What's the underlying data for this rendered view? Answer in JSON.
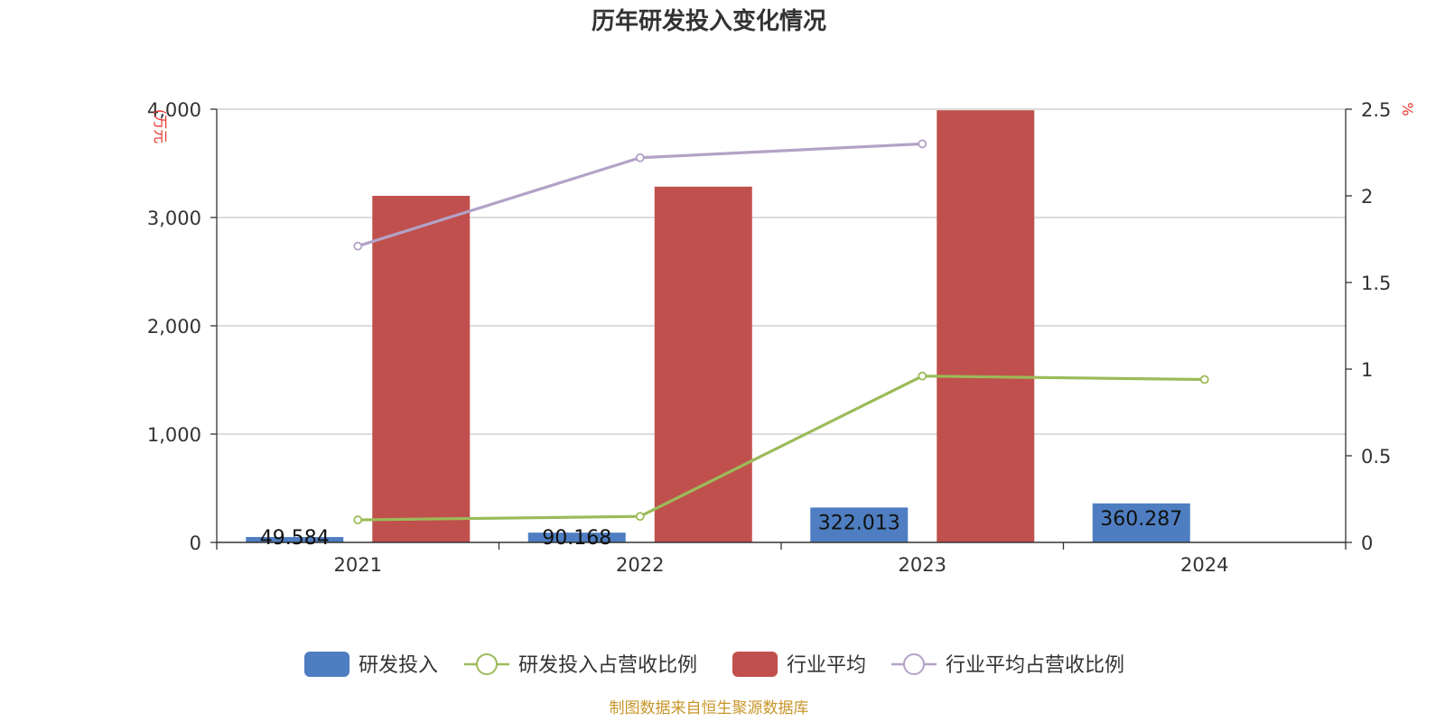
{
  "chart_data": {
    "type": "bar",
    "title": "历年研发投入变化情况",
    "categories": [
      "2021",
      "2022",
      "2023",
      "2024"
    ],
    "y_left": {
      "unit": "(万元",
      "ylim": [
        0,
        4000
      ],
      "ticks": [
        "0",
        "1,000",
        "2,000",
        "3,000",
        "4,000"
      ],
      "tick_values": [
        0,
        1000,
        2000,
        3000,
        4000
      ]
    },
    "y_right": {
      "unit": "%",
      "ylim": [
        0,
        2.5
      ],
      "ticks": [
        "0",
        "0.5",
        "1",
        "1.5",
        "2",
        "2.5"
      ],
      "tick_values": [
        0,
        0.5,
        1,
        1.5,
        2,
        2.5
      ]
    },
    "series": [
      {
        "name": "研发投入",
        "kind": "bar",
        "axis": "left",
        "color": "#4e7ec1",
        "values": [
          49.584,
          90.168,
          322.013,
          360.287
        ],
        "labels": [
          "49.584",
          "90.168",
          "322.013",
          "360.287"
        ]
      },
      {
        "name": "研发投入占营收比例",
        "kind": "line",
        "axis": "right",
        "color": "#9bbb59",
        "values": [
          0.13,
          0.15,
          0.96,
          0.94
        ]
      },
      {
        "name": "行业平均",
        "kind": "bar",
        "axis": "left",
        "color": "#c0504d",
        "values": [
          3200,
          3285,
          3990,
          null
        ]
      },
      {
        "name": "行业平均占营收比例",
        "kind": "line",
        "axis": "right",
        "color": "#b3a2c7",
        "values": [
          1.71,
          2.22,
          2.3,
          null
        ]
      }
    ],
    "grid": true,
    "legend_position": "bottom",
    "source": "制图数据来自恒生聚源数据库"
  }
}
